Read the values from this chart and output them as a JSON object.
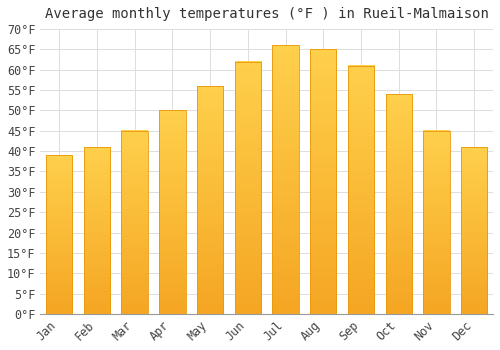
{
  "title": "Average monthly temperatures (°F ) in Rueil-Malmaison",
  "months": [
    "Jan",
    "Feb",
    "Mar",
    "Apr",
    "May",
    "Jun",
    "Jul",
    "Aug",
    "Sep",
    "Oct",
    "Nov",
    "Dec"
  ],
  "values": [
    39,
    41,
    45,
    50,
    56,
    62,
    66,
    65,
    61,
    54,
    45,
    41
  ],
  "bar_color_top": "#FFD04C",
  "bar_color_bottom": "#F5A623",
  "bar_edge_color": "#E8980A",
  "background_color": "#FFFFFF",
  "grid_color": "#DDDDDD",
  "tick_label_color": "#444444",
  "title_color": "#333333",
  "ylim": [
    0,
    70
  ],
  "yticks": [
    0,
    5,
    10,
    15,
    20,
    25,
    30,
    35,
    40,
    45,
    50,
    55,
    60,
    65,
    70
  ],
  "ylabel_suffix": "°F",
  "title_fontsize": 10,
  "tick_fontsize": 8.5,
  "bar_width": 0.7
}
